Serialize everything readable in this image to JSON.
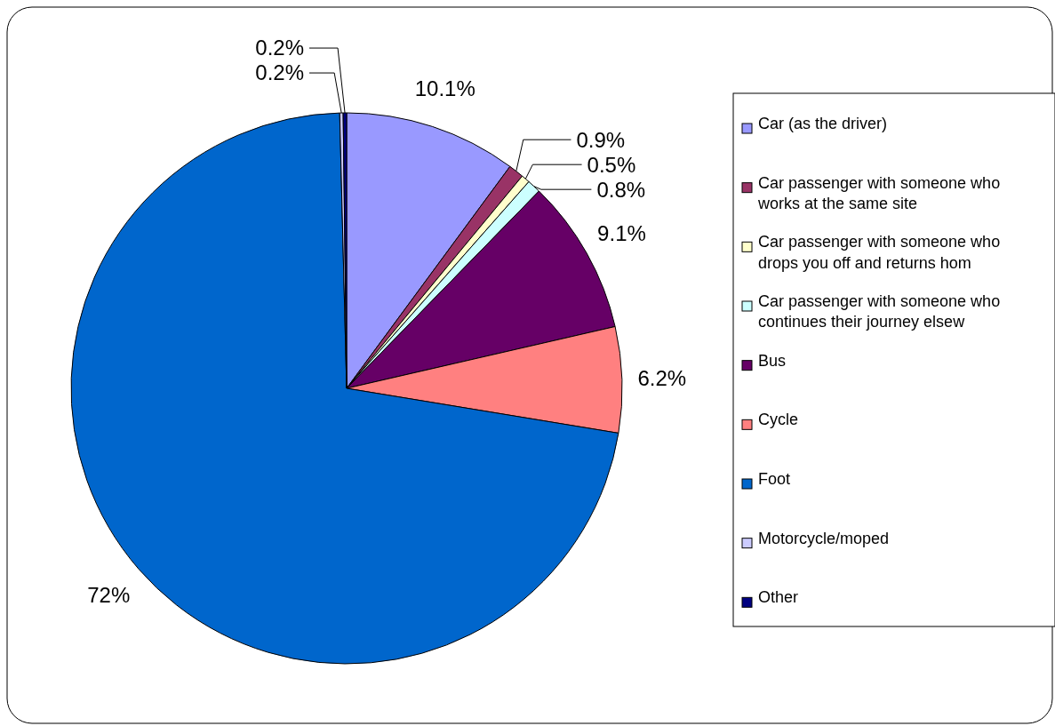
{
  "chart_data": {
    "type": "pie",
    "categories": [
      "Car (as the driver)",
      "Car passenger with someone who works at the same site",
      "Car passenger with someone who drops you off and returns hom",
      "Car passenger with someone who continues their journey elsew",
      "Bus",
      "Cycle",
      "Foot",
      "Motorcycle/moped",
      "Other"
    ],
    "values": [
      10.1,
      0.9,
      0.5,
      0.8,
      9.1,
      6.2,
      72,
      0.2,
      0.2
    ],
    "colors": [
      "#9999ff",
      "#993366",
      "#ffffcc",
      "#ccffff",
      "#660066",
      "#ff8080",
      "#0066cc",
      "#ccccff",
      "#000080"
    ],
    "value_labels": [
      "10.1%",
      "0.9%",
      "0.5%",
      "0.8%",
      "9.1%",
      "6.2%",
      "72%",
      "0.2%",
      "0.2%"
    ],
    "legend": "right"
  }
}
